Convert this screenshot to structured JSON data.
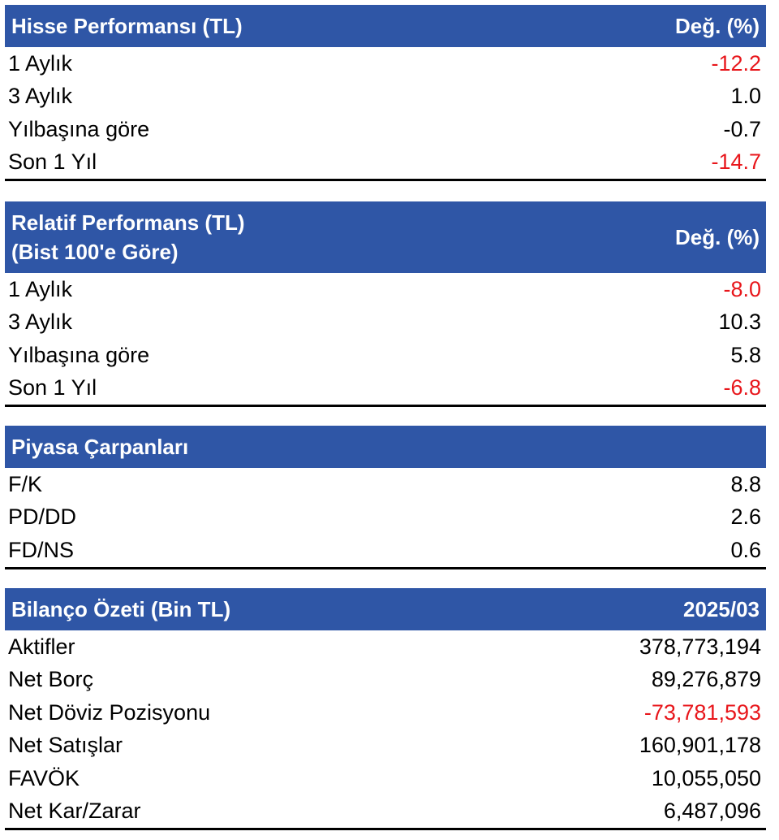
{
  "colors": {
    "header_bg": "#2f56a6",
    "header_text": "#ffffff",
    "negative": "#e8161b",
    "text": "#000000"
  },
  "hisse": {
    "title": "Hisse Performansı (TL)",
    "col": "Değ. (%)",
    "rows": [
      {
        "label": "1 Aylık",
        "value": "-12.2"
      },
      {
        "label": "3 Aylık",
        "value": "1.0"
      },
      {
        "label": "Yılbaşına göre",
        "value": "-0.7"
      },
      {
        "label": "Son 1 Yıl",
        "value": "-14.7"
      }
    ]
  },
  "relatif": {
    "title_line1": "Relatif Performans (TL)",
    "title_line2": "(Bist 100'e Göre)",
    "col": "Değ. (%)",
    "rows": [
      {
        "label": "1 Aylık",
        "value": "-8.0"
      },
      {
        "label": "3 Aylık",
        "value": "10.3"
      },
      {
        "label": "Yılbaşına göre",
        "value": "5.8"
      },
      {
        "label": "Son 1 Yıl",
        "value": "-6.8"
      }
    ]
  },
  "carpanlar": {
    "title": "Piyasa Çarpanları",
    "rows": [
      {
        "label": "F/K",
        "value": "8.8"
      },
      {
        "label": "PD/DD",
        "value": "2.6"
      },
      {
        "label": "FD/NS",
        "value": "0.6"
      }
    ]
  },
  "bilanco": {
    "title": "Bilanço Özeti (Bin TL)",
    "col": "2025/03",
    "rows": [
      {
        "label": "Aktifler",
        "value": "378,773,194"
      },
      {
        "label": "Net Borç",
        "value": "89,276,879"
      },
      {
        "label": "Net Döviz Pozisyonu",
        "value": "-73,781,593"
      },
      {
        "label": "Net Satışlar",
        "value": "160,901,178"
      },
      {
        "label": "FAVÖK",
        "value": "10,055,050"
      },
      {
        "label": "Net Kar/Zarar",
        "value": "6,487,096"
      }
    ]
  }
}
